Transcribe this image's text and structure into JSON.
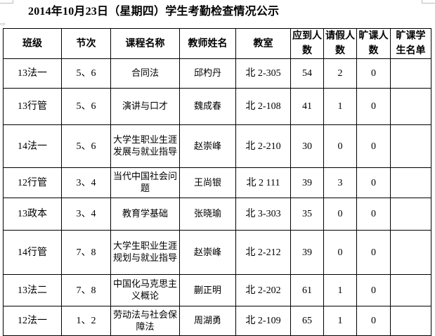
{
  "title": "2014年10月23日（星期四）学生考勤检查情况公示",
  "headers": [
    "班级",
    "节次",
    "课程名称",
    "教师姓名",
    "教室",
    "应到人数",
    "请假人数",
    "旷课人数",
    "旷课学生名单"
  ],
  "rows": [
    {
      "class": "13法一",
      "period": "5、6",
      "course": "合同法",
      "teacher": "邱杓丹",
      "room": "北 2-305",
      "expected": "54",
      "leave": "2",
      "absent": "0",
      "absent_names": ""
    },
    {
      "class": "13行管",
      "period": "5、6",
      "course": "演讲与口才",
      "teacher": "魏成春",
      "room": "北 2-108",
      "expected": "41",
      "leave": "1",
      "absent": "0",
      "absent_names": ""
    },
    {
      "class": "14法一",
      "period": "5、6",
      "course": "大学生职业生涯发展与就业指导",
      "teacher": "赵崇峰",
      "room": "北 2-210",
      "expected": "30",
      "leave": "0",
      "absent": "0",
      "absent_names": ""
    },
    {
      "class": "12行管",
      "period": "3、4",
      "course": "当代中国社会问题",
      "teacher": "王尚银",
      "room": "北 2 111",
      "expected": "39",
      "leave": "3",
      "absent": "0",
      "absent_names": ""
    },
    {
      "class": "13政本",
      "period": "3、4",
      "course": "教育学基础",
      "teacher": "张晓瑜",
      "room": "北 3-303",
      "expected": "35",
      "leave": "0",
      "absent": "0",
      "absent_names": ""
    },
    {
      "class": "14行管",
      "period": "7、8",
      "course": "大学生职业生涯规划与就业指导",
      "teacher": "赵崇峰",
      "room": "北 2-212",
      "expected": "39",
      "leave": "0",
      "absent": "0",
      "absent_names": ""
    },
    {
      "class": "13法二",
      "period": "7、8",
      "course": "中国化马克思主义概论",
      "teacher": "蒯正明",
      "room": "北 2-202",
      "expected": "61",
      "leave": "1",
      "absent": "0",
      "absent_names": ""
    },
    {
      "class": "12法一",
      "period": "1、2",
      "course": "劳动法与社会保障法",
      "teacher": "周湖勇",
      "room": "北 2-109",
      "expected": "65",
      "leave": "1",
      "absent": "0",
      "absent_names": ""
    }
  ]
}
